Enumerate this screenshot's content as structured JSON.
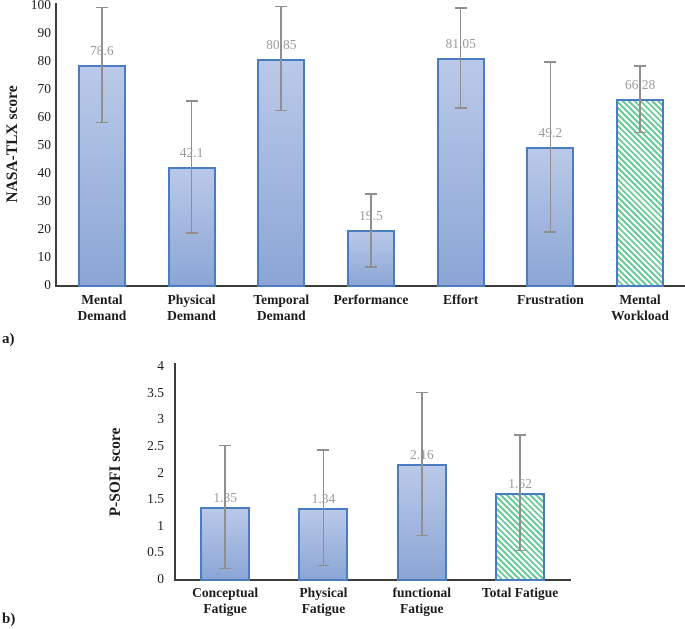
{
  "figure": {
    "panel_a_label": "a)",
    "panel_b_label": "b)",
    "background": "#ffffff"
  },
  "colors": {
    "bar_fill_top": "#bac9e9",
    "bar_fill_bottom": "#8ba6d5",
    "bar_border": "#4a7cc0",
    "hatch_stripe": "#66cb95",
    "hatch_background": "#ffffff",
    "error_bar": "#8f8f8f",
    "value_label_text": "#9c9c9c",
    "axis_line": "#3c3c3c",
    "tick_text": "#1c1c1c"
  },
  "chart_data": [
    {
      "id": "nasa_tlx",
      "type": "bar",
      "panel": "a)",
      "title": "",
      "ylabel": "NASA-TLX score",
      "xlabel": "",
      "ylim": [
        0,
        100
      ],
      "ytick_step": 10,
      "grid": false,
      "legend": "none",
      "categories": [
        "Mental Demand",
        "Physical Demand",
        "Temporal Demand",
        "Performance",
        "Effort",
        "Frustration",
        "Mental Workload"
      ],
      "category_lines": [
        [
          "Mental",
          "Demand"
        ],
        [
          "Physical",
          "Demand"
        ],
        [
          "Temporal",
          "Demand"
        ],
        [
          "Performance"
        ],
        [
          "Effort"
        ],
        [
          "Frustration"
        ],
        [
          "Mental",
          "Workload"
        ]
      ],
      "values": [
        78.6,
        42.1,
        80.85,
        19.5,
        81.05,
        49.2,
        66.28
      ],
      "value_labels": [
        "78.6",
        "42.1",
        "80.85",
        "19.5",
        "81.05",
        "49.2",
        "66.28"
      ],
      "error_bars": [
        20.5,
        23.5,
        18.5,
        13.0,
        17.8,
        30.3,
        11.8
      ],
      "last_bar_hatched": true
    },
    {
      "id": "p_sofi",
      "type": "bar",
      "panel": "b)",
      "title": "",
      "ylabel": "P-SOFI score",
      "xlabel": "",
      "ylim": [
        0,
        4
      ],
      "ytick_step": 0.5,
      "grid": false,
      "legend": "none",
      "categories": [
        "Conceptual Fatigue",
        "Physical Fatigue",
        "functional Fatigue",
        "Total Fatigue"
      ],
      "category_lines": [
        [
          "Conceptual",
          "Fatigue"
        ],
        [
          "Physical",
          "Fatigue"
        ],
        [
          "functional",
          "Fatigue"
        ],
        [
          "Total Fatigue"
        ]
      ],
      "values": [
        1.35,
        1.34,
        2.16,
        1.62
      ],
      "value_labels": [
        "1.35",
        "1.34",
        "2.16",
        "1.62"
      ],
      "error_bars": [
        1.15,
        1.08,
        1.34,
        1.08
      ],
      "last_bar_hatched": true
    }
  ]
}
